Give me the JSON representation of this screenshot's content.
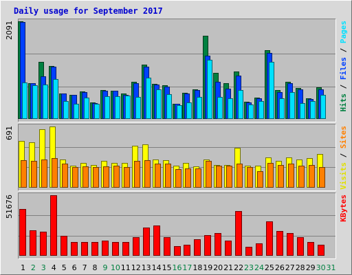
{
  "chart_data": {
    "type": "bar",
    "title": "Daily usage for September 2017",
    "categories": [
      "1",
      "2",
      "3",
      "4",
      "5",
      "6",
      "7",
      "8",
      "9",
      "10",
      "11",
      "12",
      "13",
      "14",
      "15",
      "16",
      "17",
      "18",
      "19",
      "20",
      "21",
      "22",
      "23",
      "24",
      "25",
      "26",
      "27",
      "28",
      "29",
      "30",
      "31"
    ],
    "weekend_days": [
      2,
      3,
      9,
      10,
      16,
      17,
      23,
      24,
      30,
      31
    ],
    "panels": [
      {
        "id": "top",
        "max_label": "2091",
        "ymax": 2091,
        "legend": [
          {
            "text": "Hits",
            "color": "#008040"
          },
          {
            "text": " / ",
            "color": "#000000"
          },
          {
            "text": "Files",
            "color": "#0040ff"
          },
          {
            "text": " / ",
            "color": "#000000"
          },
          {
            "text": "Pages",
            "color": "#00e0ff"
          }
        ],
        "series": [
          {
            "name": "Hits",
            "color": "#008040",
            "values": [
              2091,
              760,
              1220,
              1130,
              540,
              520,
              590,
              350,
              620,
              610,
              540,
              790,
              1160,
              750,
              720,
              330,
              560,
              640,
              1780,
              990,
              760,
              1010,
              370,
              450,
              1470,
              620,
              790,
              660,
              440,
              680,
              0
            ]
          },
          {
            "name": "Files",
            "color": "#0040ff",
            "values": [
              2080,
              760,
              920,
              1120,
              540,
              520,
              570,
              340,
              610,
              600,
              510,
              760,
              1120,
              740,
              690,
              320,
              540,
              620,
              1350,
              790,
              650,
              930,
              360,
              440,
              1420,
              580,
              760,
              630,
              420,
              640,
              0
            ]
          },
          {
            "name": "Pages",
            "color": "#00e0ff",
            "values": [
              780,
              720,
              740,
              860,
              390,
              330,
              460,
              320,
              490,
              490,
              500,
              470,
              880,
              640,
              530,
              290,
              360,
              470,
              1260,
              470,
              440,
              620,
              310,
              380,
              1220,
              440,
              580,
              340,
              380,
              520,
              0
            ]
          }
        ]
      },
      {
        "id": "middle",
        "max_label": "691",
        "ymax": 691,
        "legend": [
          {
            "text": "Visits",
            "color": "#e0e000"
          },
          {
            "text": " / ",
            "color": "#000000"
          },
          {
            "text": "Sites",
            "color": "#ff8000"
          }
        ],
        "series": [
          {
            "name": "Visits",
            "color": "#ffff00",
            "values": [
              530,
              510,
              660,
              691,
              320,
              250,
              280,
              260,
              300,
              280,
              280,
              470,
              490,
              320,
              310,
              250,
              280,
              240,
              320,
              260,
              260,
              450,
              250,
              250,
              340,
              300,
              340,
              320,
              330,
              380,
              0
            ]
          },
          {
            "name": "Sites",
            "color": "#ff8000",
            "values": [
              310,
              300,
              320,
              330,
              270,
              230,
              240,
              230,
              240,
              250,
              230,
              300,
              310,
              270,
              270,
              210,
              220,
              220,
              300,
              250,
              250,
              270,
              230,
              190,
              280,
              260,
              270,
              250,
              260,
              230,
              0
            ]
          }
        ]
      },
      {
        "id": "bottom",
        "max_label": "51676",
        "ymax": 51676,
        "legend": [
          {
            "text": "KBytes",
            "color": "#ff0000"
          }
        ],
        "series": [
          {
            "name": "KBytes",
            "color": "#ff0000",
            "values": [
              40000,
              22000,
              20500,
              51676,
              17000,
              12000,
              12000,
              12000,
              13000,
              11600,
              11600,
              15800,
              24000,
              25800,
              16000,
              8500,
              9500,
              14000,
              17400,
              19300,
              12800,
              38000,
              7500,
              10500,
              29500,
              21300,
              19400,
              15900,
              11600,
              9600,
              0
            ]
          }
        ]
      }
    ]
  }
}
